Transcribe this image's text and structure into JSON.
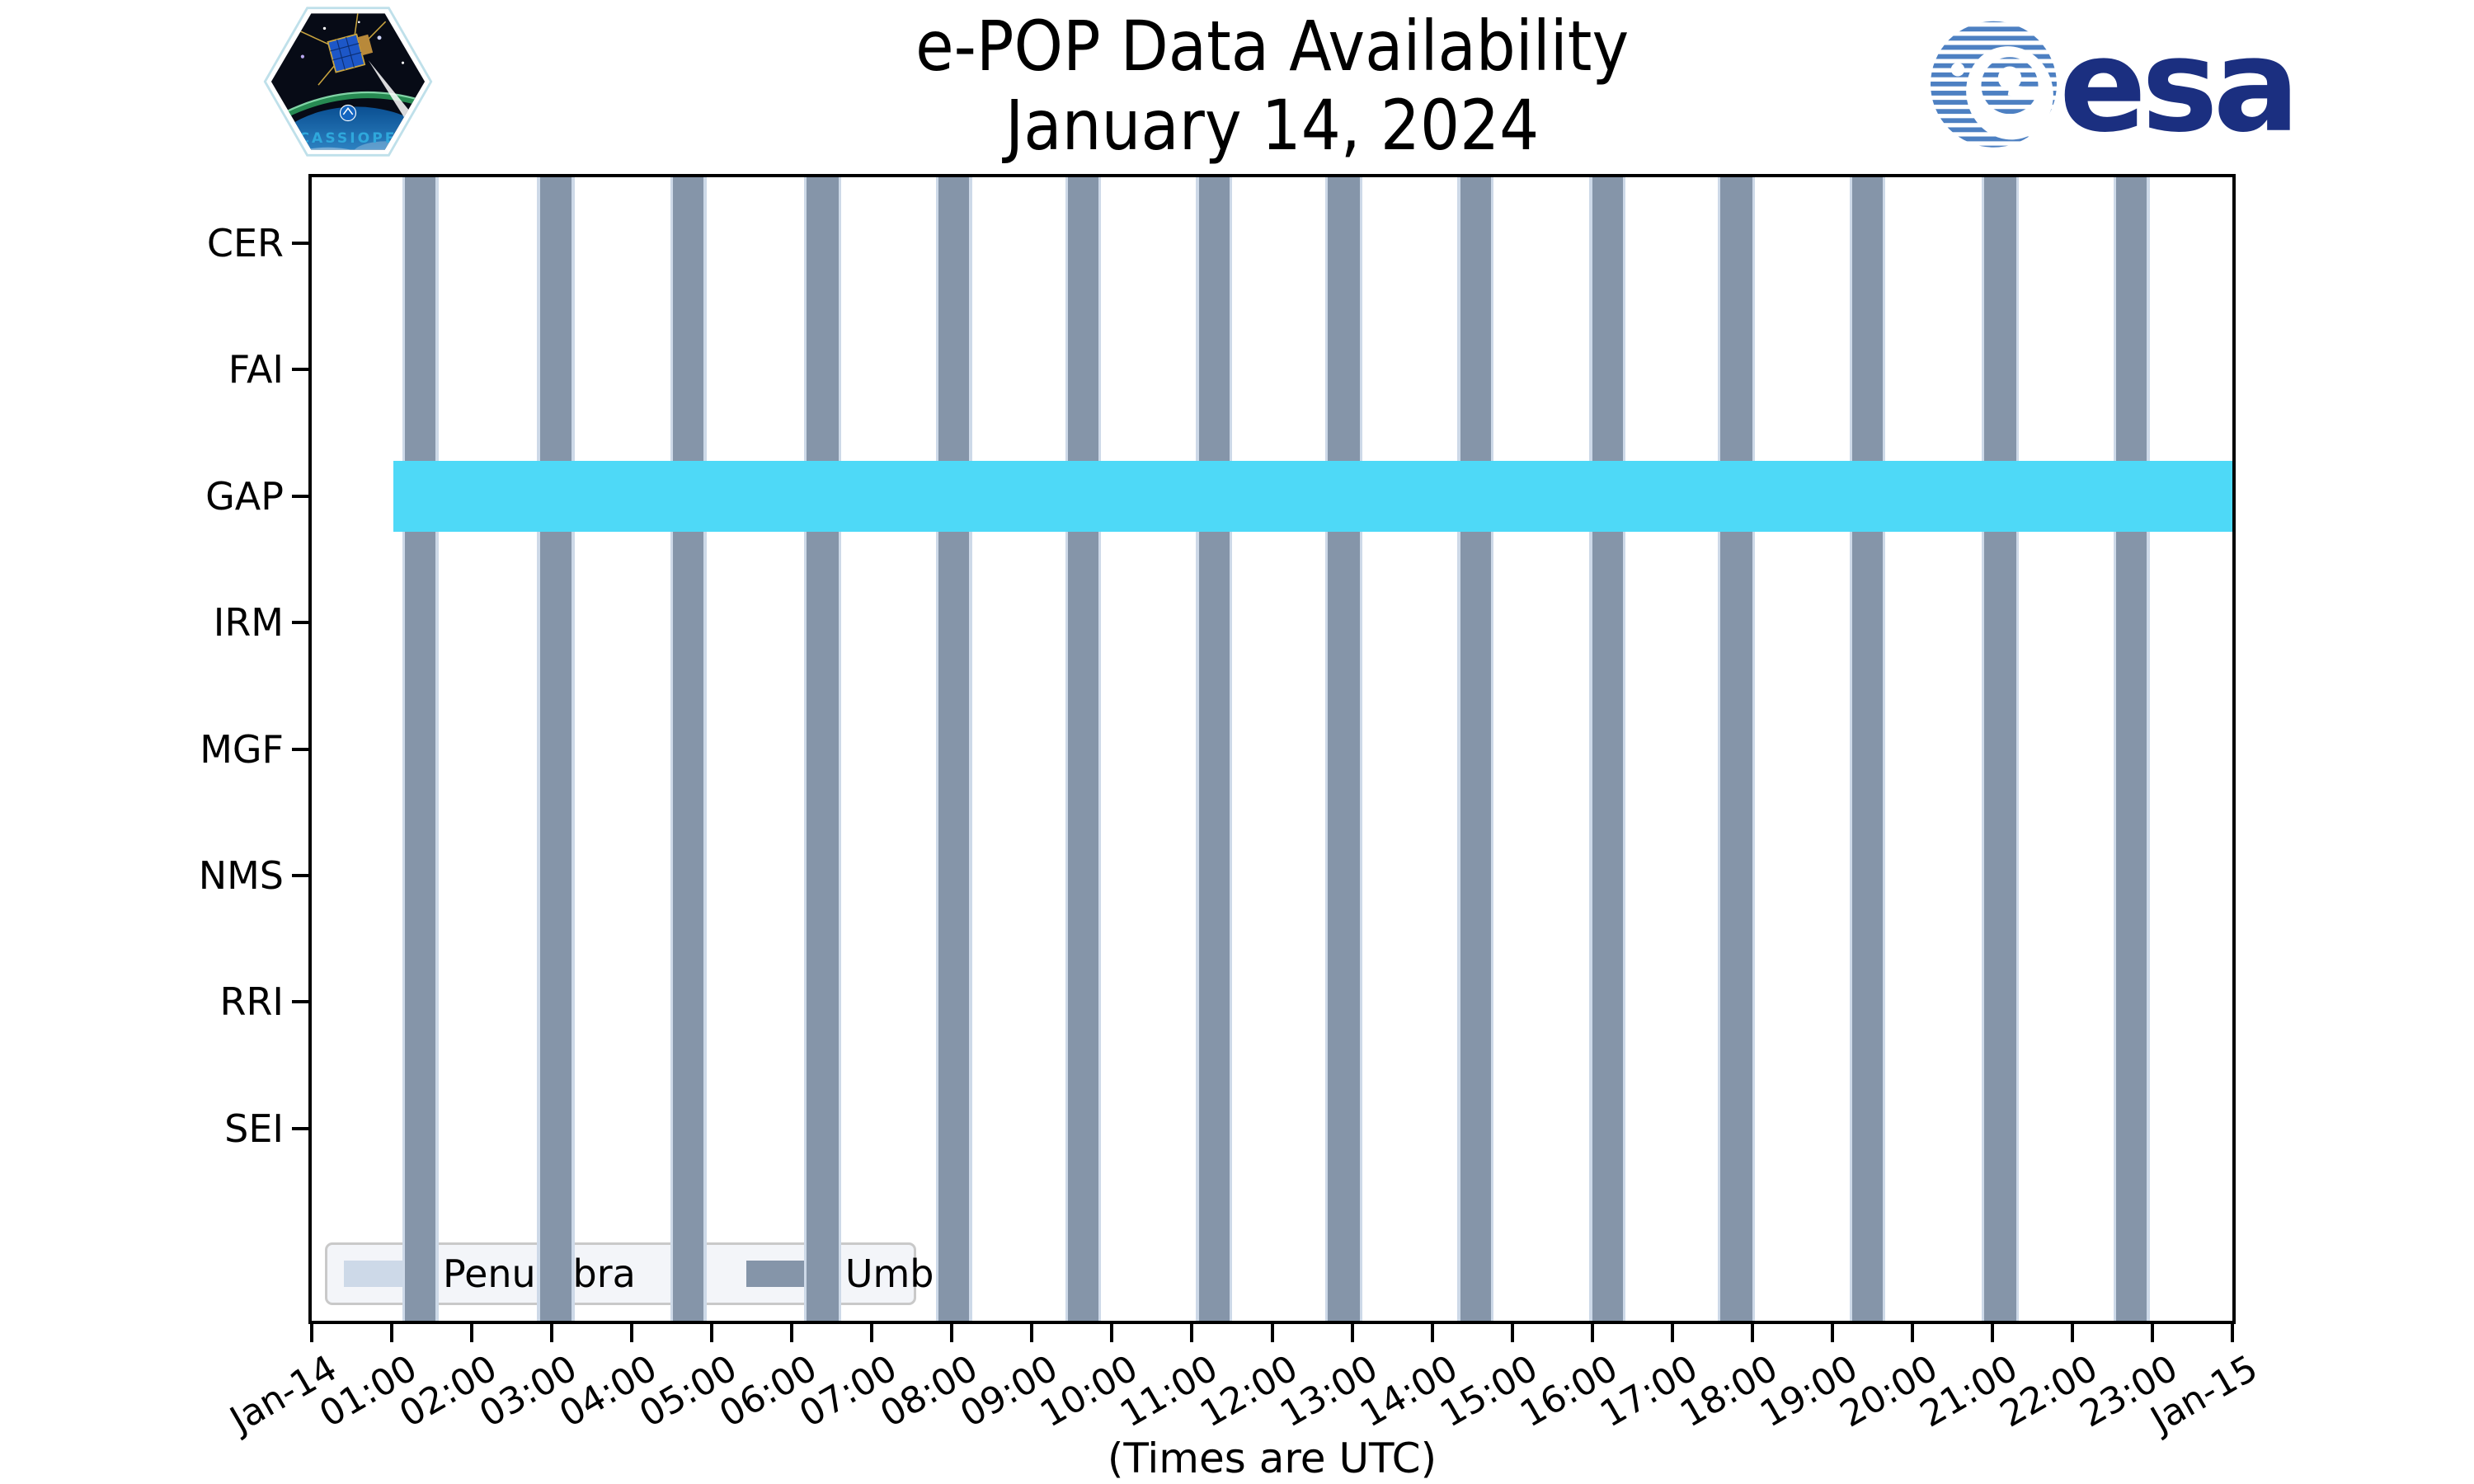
{
  "logos": {
    "cassiope_caption": "CASSIOPE",
    "esa_wordmark": "esa"
  },
  "chart_data": {
    "type": "timeline",
    "title": "e-POP Data Availability",
    "subtitle": "January 14, 2024",
    "xlabel": "(Times are UTC)",
    "legend_position": "lower left",
    "grid": false,
    "rows": [
      "CER",
      "FAI",
      "GAP",
      "IRM",
      "MGF",
      "NMS",
      "RRI",
      "SEI"
    ],
    "x_range": [
      "Jan-14 00:00",
      "Jan-15 00:00"
    ],
    "x_ticks": [
      {
        "hour": 0,
        "label": "Jan-14"
      },
      {
        "hour": 1,
        "label": "01:00"
      },
      {
        "hour": 2,
        "label": "02:00"
      },
      {
        "hour": 3,
        "label": "03:00"
      },
      {
        "hour": 4,
        "label": "04:00"
      },
      {
        "hour": 5,
        "label": "05:00"
      },
      {
        "hour": 6,
        "label": "06:00"
      },
      {
        "hour": 7,
        "label": "07:00"
      },
      {
        "hour": 8,
        "label": "08:00"
      },
      {
        "hour": 9,
        "label": "09:00"
      },
      {
        "hour": 10,
        "label": "10:00"
      },
      {
        "hour": 11,
        "label": "11:00"
      },
      {
        "hour": 12,
        "label": "12:00"
      },
      {
        "hour": 13,
        "label": "13:00"
      },
      {
        "hour": 14,
        "label": "14:00"
      },
      {
        "hour": 15,
        "label": "15:00"
      },
      {
        "hour": 16,
        "label": "16:00"
      },
      {
        "hour": 17,
        "label": "17:00"
      },
      {
        "hour": 18,
        "label": "18:00"
      },
      {
        "hour": 19,
        "label": "19:00"
      },
      {
        "hour": 20,
        "label": "20:00"
      },
      {
        "hour": 21,
        "label": "21:00"
      },
      {
        "hour": 22,
        "label": "22:00"
      },
      {
        "hour": 23,
        "label": "23:00"
      },
      {
        "hour": 24,
        "label": "Jan-15"
      }
    ],
    "umbra_intervals": [
      {
        "start": "01:10",
        "end": "01:33"
      },
      {
        "start": "02:51",
        "end": "03:15"
      },
      {
        "start": "04:31",
        "end": "04:54"
      },
      {
        "start": "06:11",
        "end": "06:35"
      },
      {
        "start": "07:50",
        "end": "08:13"
      },
      {
        "start": "09:27",
        "end": "09:50"
      },
      {
        "start": "11:05",
        "end": "11:28"
      },
      {
        "start": "12:42",
        "end": "13:06"
      },
      {
        "start": "14:21",
        "end": "14:44"
      },
      {
        "start": "16:00",
        "end": "16:23"
      },
      {
        "start": "17:36",
        "end": "18:00"
      },
      {
        "start": "19:15",
        "end": "19:38"
      },
      {
        "start": "20:54",
        "end": "21:18"
      },
      {
        "start": "22:33",
        "end": "22:56"
      }
    ],
    "penumbra_pad_minutes": 2,
    "availability": [
      {
        "row": "GAP",
        "start": "01:01",
        "end": "24:00"
      }
    ],
    "legend": [
      {
        "label": "Penumbra",
        "color": "#cdd9e8"
      },
      {
        "label": "Umbra",
        "color": "#8595a9"
      }
    ],
    "colors": {
      "umbra": "#8595a9",
      "penumbra": "#cdd9e8",
      "availability": "#4ed9f7",
      "spine": "#000000",
      "legend_bg": "#f2f4f9",
      "esa_blue": "#1b2f80",
      "esa_stripe_blue": "#4d80c2"
    }
  }
}
